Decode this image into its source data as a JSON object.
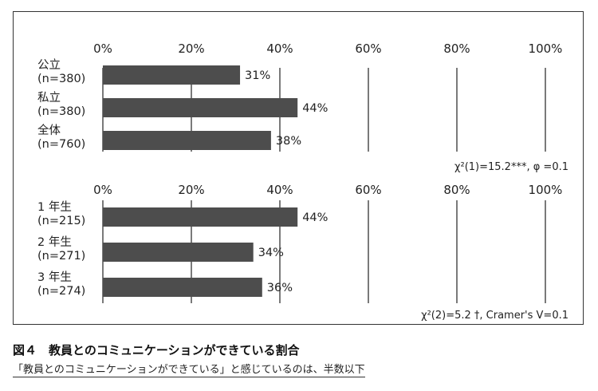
{
  "chart_data": [
    {
      "type": "bar",
      "orientation": "horizontal",
      "categories": [
        [
          "公立",
          "(n=380)"
        ],
        [
          "私立",
          "(n=380)"
        ],
        [
          "全体",
          "(n=760)"
        ]
      ],
      "values": [
        31,
        44,
        38
      ],
      "value_labels": [
        "31%",
        "44%",
        "38%"
      ],
      "xlim": [
        0,
        100
      ],
      "ticks": [
        "0%",
        "20%",
        "40%",
        "60%",
        "80%",
        "100%"
      ],
      "stat_note": "χ²(1)=15.2***, φ =0.1",
      "bar_color": "#4d4d4d"
    },
    {
      "type": "bar",
      "orientation": "horizontal",
      "categories": [
        [
          "1 年生",
          "(n=215)"
        ],
        [
          "2 年生",
          "(n=271)"
        ],
        [
          "3 年生",
          "(n=274)"
        ]
      ],
      "values": [
        44,
        34,
        36
      ],
      "value_labels": [
        "44%",
        "34%",
        "36%"
      ],
      "xlim": [
        0,
        100
      ],
      "ticks": [
        "0%",
        "20%",
        "40%",
        "60%",
        "80%",
        "100%"
      ],
      "stat_note": "χ²(2)=5.2 †, Cramer's V=0.1",
      "bar_color": "#4d4d4d"
    }
  ],
  "caption": {
    "title": "図４　教員とのコミュニケーションができている割合",
    "subtitle": "「教員とのコミュニケーションができている」と感じているのは、半数以下"
  }
}
